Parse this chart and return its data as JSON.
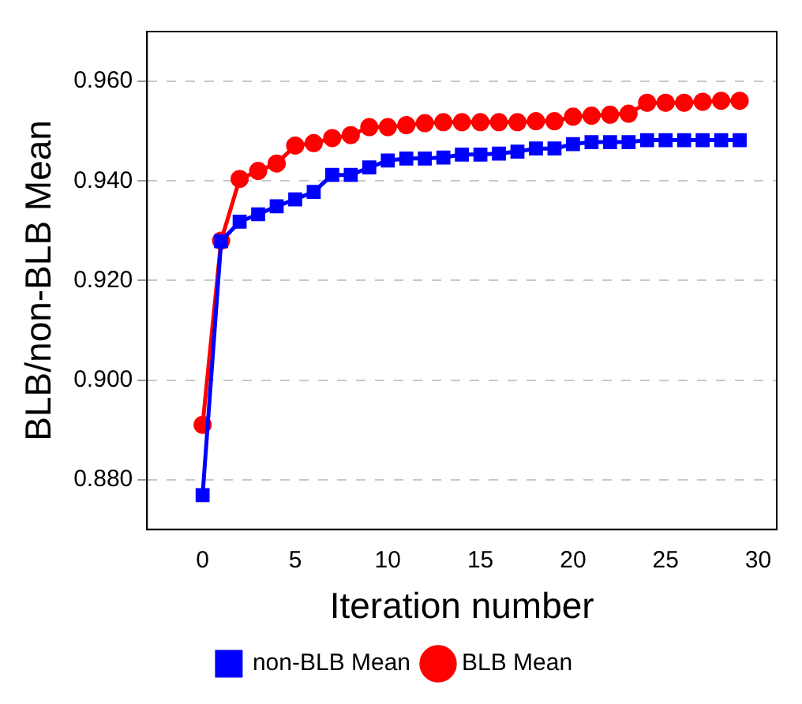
{
  "chart_data": {
    "type": "line",
    "xlabel": "Iteration number",
    "ylabel": "BLB/non-BLB Mean",
    "x": [
      0,
      1,
      2,
      3,
      4,
      5,
      6,
      7,
      8,
      9,
      10,
      11,
      12,
      13,
      14,
      15,
      16,
      17,
      18,
      19,
      20,
      21,
      22,
      23,
      24,
      25,
      26,
      27,
      28,
      29
    ],
    "series": [
      {
        "name": "BLB Mean",
        "color": "#ff0000",
        "marker": "circle",
        "values": [
          0.891,
          0.928,
          0.9404,
          0.942,
          0.9435,
          0.9471,
          0.9476,
          0.9486,
          0.9492,
          0.9508,
          0.9508,
          0.9512,
          0.9516,
          0.9518,
          0.9518,
          0.9518,
          0.9518,
          0.9518,
          0.952,
          0.952,
          0.9529,
          0.9531,
          0.9533,
          0.9535,
          0.9557,
          0.9557,
          0.9557,
          0.9559,
          0.9561,
          0.9561
        ]
      },
      {
        "name": "non-BLB Mean",
        "color": "#0000ff",
        "marker": "square",
        "values": [
          0.8769,
          0.9279,
          0.9318,
          0.9333,
          0.9349,
          0.9363,
          0.9378,
          0.9412,
          0.9412,
          0.9427,
          0.9441,
          0.9445,
          0.9445,
          0.9447,
          0.9453,
          0.9453,
          0.9455,
          0.9459,
          0.9465,
          0.9465,
          0.9474,
          0.9478,
          0.9478,
          0.9478,
          0.9482,
          0.9482,
          0.9482,
          0.9482,
          0.9482,
          0.9482
        ]
      }
    ],
    "xlim": [
      -3,
      31
    ],
    "xticks": [
      0,
      5,
      10,
      15,
      20,
      25,
      30
    ],
    "ylim": [
      0.87,
      0.97
    ],
    "yticks": [
      {
        "value": 0.88,
        "label": "0.880"
      },
      {
        "value": 0.9,
        "label": "0.900"
      },
      {
        "value": 0.92,
        "label": "0.920"
      },
      {
        "value": 0.94,
        "label": "0.940"
      },
      {
        "value": 0.96,
        "label": "0.960"
      }
    ],
    "grid": "y",
    "legend": "bottom",
    "line_style": "solid"
  }
}
